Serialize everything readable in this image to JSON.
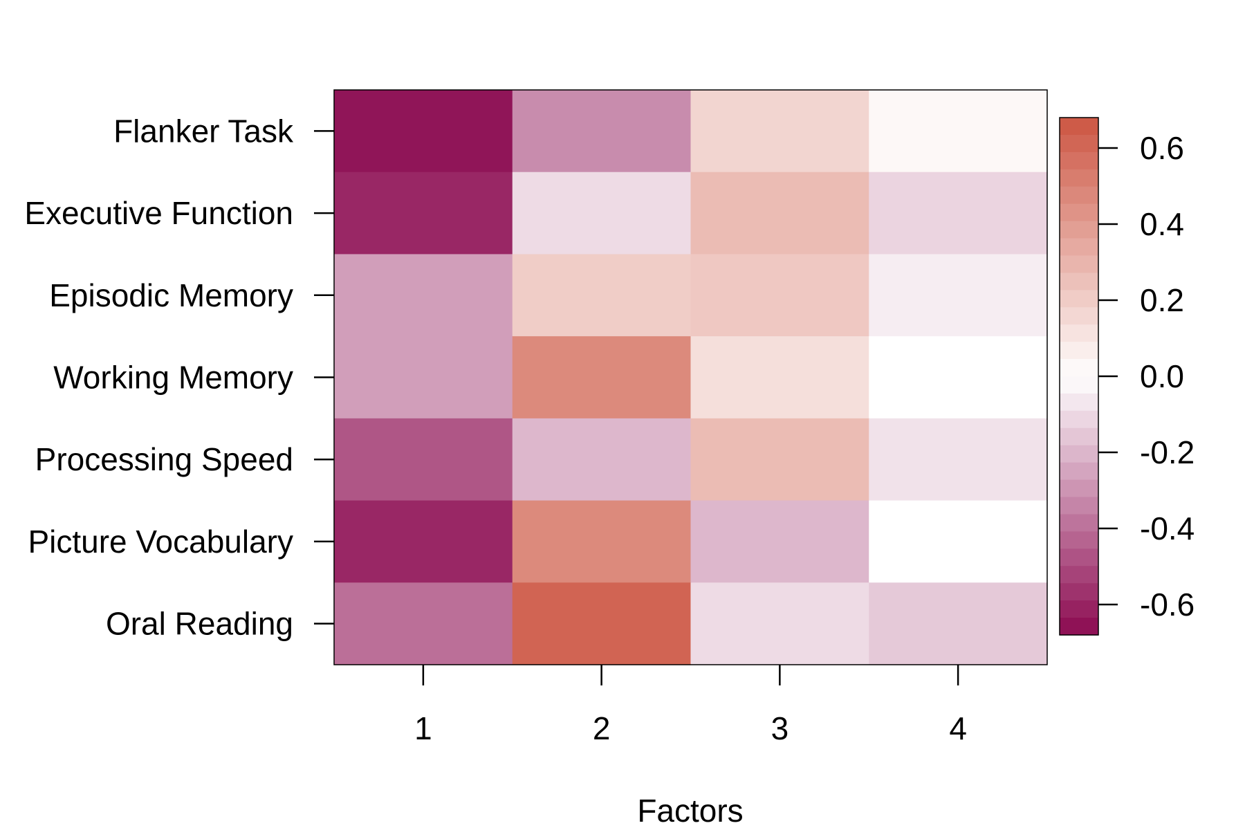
{
  "chart_data": {
    "type": "heatmap",
    "title": "",
    "xlabel": "Factors",
    "ylabel": "",
    "x_categories": [
      "1",
      "2",
      "3",
      "4"
    ],
    "y_categories": [
      "Flanker Task",
      "Executive Function",
      "Episodic Memory",
      "Working Memory",
      "Processing Speed",
      "Picture Vocabulary",
      "Oral Reading"
    ],
    "values": [
      [
        -0.65,
        -0.32,
        0.17,
        0.03
      ],
      [
        -0.6,
        -0.1,
        0.27,
        -0.12
      ],
      [
        -0.27,
        0.2,
        0.22,
        -0.05
      ],
      [
        -0.27,
        0.47,
        0.13,
        0.0
      ],
      [
        -0.47,
        -0.2,
        0.27,
        -0.08
      ],
      [
        -0.6,
        0.47,
        -0.2,
        0.0
      ],
      [
        -0.4,
        0.62,
        -0.1,
        -0.15
      ]
    ],
    "colorbar": {
      "range": [
        -0.68,
        0.68
      ],
      "ticks": [
        0.6,
        0.4,
        0.2,
        0.0,
        -0.2,
        -0.4,
        -0.6
      ],
      "tick_labels": [
        "0.6",
        "0.4",
        "0.2",
        "0.0",
        "-0.2",
        "-0.4",
        "-0.6"
      ],
      "colors": {
        "negative": "#8b0a50",
        "zero": "#ffffff",
        "positive": "#cc5542"
      }
    },
    "grid": false,
    "legend_position": "right"
  }
}
